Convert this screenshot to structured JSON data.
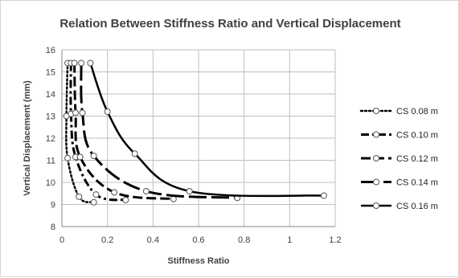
{
  "chart_data": {
    "type": "line",
    "title": "Relation Between Stiffness Ratio and Vertical Displacement",
    "xlabel": "Stiffness Ratio",
    "ylabel": "Vertical Displacement (mm)",
    "xlim": [
      0,
      1.2
    ],
    "ylim": [
      8,
      16
    ],
    "xticks": [
      0,
      0.2,
      0.4,
      0.6,
      0.8,
      1,
      1.2
    ],
    "yticks": [
      8,
      9,
      10,
      11,
      12,
      13,
      14,
      15,
      16
    ],
    "grid": true,
    "legend_position": "right",
    "series": [
      {
        "name": "CS 0.08 m",
        "dash": "dotted",
        "x": [
          0.025,
          0.02,
          0.025,
          0.075,
          0.14
        ],
        "y": [
          15.4,
          13.0,
          11.1,
          9.35,
          9.1
        ]
      },
      {
        "name": "CS 0.10 m",
        "dash": "dash-dot",
        "x": [
          0.04,
          0.04,
          0.06,
          0.15,
          0.28
        ],
        "y": [
          15.4,
          13.1,
          11.15,
          9.45,
          9.2
        ]
      },
      {
        "name": "CS 0.12 m",
        "dash": "dashed",
        "x": [
          0.055,
          0.06,
          0.08,
          0.23,
          0.49
        ],
        "y": [
          15.4,
          13.15,
          11.15,
          9.55,
          9.25
        ]
      },
      {
        "name": "CS 0.14 m",
        "dash": "long-dash",
        "x": [
          0.085,
          0.09,
          0.14,
          0.37,
          0.77
        ],
        "y": [
          15.4,
          13.15,
          11.2,
          9.6,
          9.3
        ]
      },
      {
        "name": "CS 0.16 m",
        "dash": "solid",
        "x": [
          0.125,
          0.2,
          0.32,
          0.56,
          1.15
        ],
        "y": [
          15.4,
          13.2,
          11.3,
          9.6,
          9.4
        ]
      }
    ]
  }
}
